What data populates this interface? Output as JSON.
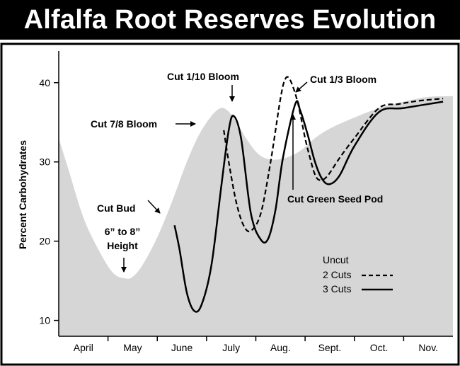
{
  "chart_data": {
    "type": "line",
    "title": "Alfalfa Root Reserves Evolution",
    "ylabel": "Percent Carbohydrates",
    "xlabel": "",
    "categories": [
      "April",
      "May",
      "June",
      "July",
      "Aug.",
      "Sept.",
      "Oct.",
      "Nov."
    ],
    "x_note_month_index": "x values are month positions: 0 = April ... 7 = Nov.",
    "ylim": [
      8,
      44
    ],
    "yticks": [
      10,
      20,
      30,
      40
    ],
    "grid": false,
    "legend_position": "bottom-right",
    "series": [
      {
        "name": "Uncut",
        "style": "area",
        "color": "#d6d6d6",
        "x": [
          -0.5,
          -0.3,
          0,
          0.3,
          0.6,
          0.85,
          1.0,
          1.2,
          1.5,
          1.8,
          2.1,
          2.4,
          2.75,
          3.0,
          3.3,
          3.55,
          3.8,
          4.1,
          4.4,
          4.7,
          5.0,
          5.5,
          6.0,
          6.5,
          7.0,
          7.5
        ],
        "values": [
          33,
          29,
          23,
          19,
          16,
          15.3,
          15.5,
          17,
          20.5,
          25,
          30,
          34,
          36.7,
          36,
          33,
          31,
          30.3,
          30.5,
          31.4,
          33,
          34.2,
          35.6,
          36.8,
          37.6,
          38.2,
          38.3
        ]
      },
      {
        "name": "2 Cuts",
        "style": "dashed",
        "color": "#000000",
        "x": [
          2.85,
          2.95,
          3.1,
          3.25,
          3.4,
          3.6,
          3.8,
          4.0,
          4.1,
          4.2,
          4.35,
          4.5,
          4.6,
          4.7,
          4.8,
          4.95,
          5.2,
          5.5,
          6.0,
          6.4,
          6.8,
          7.3
        ],
        "values": [
          34,
          30,
          25,
          22,
          21.3,
          23.5,
          30,
          38,
          40.5,
          40.3,
          37.5,
          33,
          30.5,
          28.4,
          27.7,
          28.2,
          30.5,
          33,
          36.8,
          37.3,
          37.7,
          38
        ]
      },
      {
        "name": "3 Cuts",
        "style": "solid",
        "color": "#000000",
        "x": [
          1.85,
          1.95,
          2.1,
          2.25,
          2.4,
          2.6,
          2.8,
          2.95,
          3.05,
          3.2,
          3.4,
          3.6,
          3.75,
          3.9,
          4.05,
          4.3,
          4.4,
          4.55,
          4.7,
          4.85,
          5.0,
          5.2,
          5.5,
          6.0,
          6.5,
          7.3
        ],
        "values": [
          22,
          19,
          13.5,
          11.2,
          12,
          17,
          27,
          34,
          35.8,
          33,
          23.5,
          20.2,
          20.3,
          24,
          30.5,
          37.3,
          36.5,
          33.5,
          30,
          27.8,
          27.2,
          28.3,
          32,
          36.3,
          36.8,
          37.6
        ]
      }
    ],
    "annotations": [
      {
        "text": "Cut Bud"
      },
      {
        "text": "6” to 8”"
      },
      {
        "text": "Height"
      },
      {
        "text": "Cut 7/8 Bloom"
      },
      {
        "text": "Cut 1/10 Bloom"
      },
      {
        "text": "Cut 1/3 Bloom"
      },
      {
        "text": "Cut Green Seed Pod"
      }
    ]
  }
}
